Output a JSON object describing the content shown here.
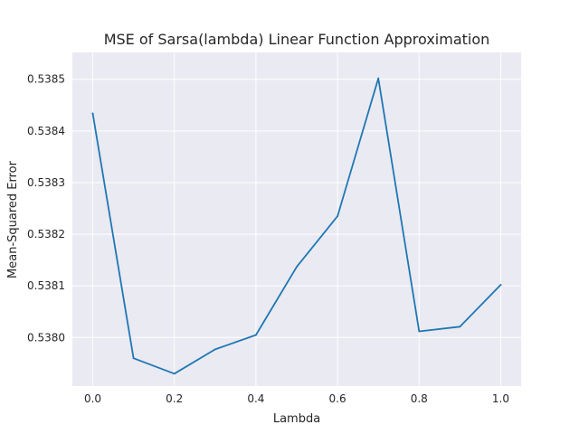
{
  "chart_data": {
    "type": "line",
    "title": "MSE of Sarsa(lambda) Linear Function Approximation",
    "xlabel": "Lambda",
    "ylabel": "Mean-Squared Error",
    "xlim": [
      -0.05,
      1.05
    ],
    "ylim": [
      0.537906,
      0.538552
    ],
    "x_ticks": [
      0.0,
      0.2,
      0.4,
      0.6,
      0.8,
      1.0
    ],
    "x_tick_labels": [
      "0.0",
      "0.2",
      "0.4",
      "0.6",
      "0.8",
      "1.0"
    ],
    "y_ticks": [
      0.538,
      0.5381,
      0.5382,
      0.5383,
      0.5384,
      0.5385
    ],
    "y_tick_labels": [
      "0.5380",
      "0.5381",
      "0.5382",
      "0.5383",
      "0.5384",
      "0.5385"
    ],
    "grid": true,
    "background": "#eaeaf2",
    "grid_color": "#ffffff",
    "line_color": "#1f77b4",
    "series": [
      {
        "x": [
          0.0,
          0.1,
          0.2,
          0.3,
          0.4,
          0.5,
          0.6,
          0.7,
          0.8,
          0.9,
          1.0
        ],
        "values": [
          0.538434,
          0.53796,
          0.53793,
          0.537977,
          0.538005,
          0.538137,
          0.538235,
          0.538502,
          0.538012,
          0.538021,
          0.538102
        ]
      }
    ]
  }
}
